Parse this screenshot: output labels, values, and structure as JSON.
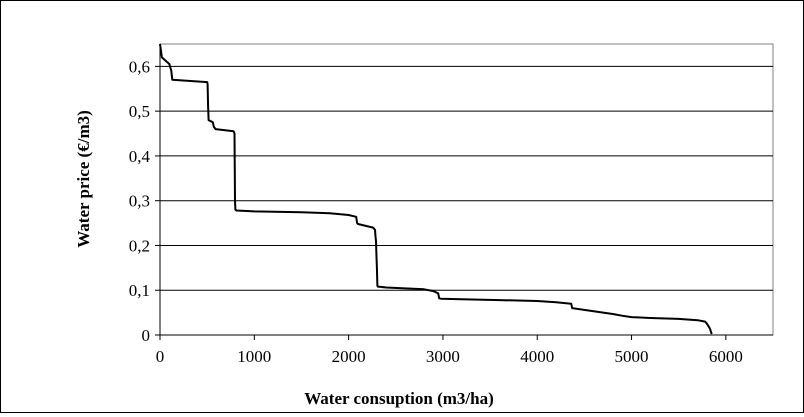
{
  "chart_data": {
    "type": "line",
    "title": "",
    "xlabel": "Water consuption  (m3/ha)",
    "ylabel": "Water price (€/m3)",
    "xlim": [
      0,
      6500
    ],
    "ylim": [
      0,
      0.65
    ],
    "x_ticks": [
      0,
      1000,
      2000,
      3000,
      4000,
      5000,
      6000
    ],
    "x_tick_labels": [
      "0",
      "1000",
      "2000",
      "3000",
      "4000",
      "5000",
      "6000"
    ],
    "y_ticks": [
      0,
      0.1,
      0.2,
      0.3,
      0.4,
      0.5,
      0.6
    ],
    "y_tick_labels": [
      "0",
      "0,1",
      "0,2",
      "0,3",
      "0,4",
      "0,5",
      "0,6"
    ],
    "grid": "horizontal",
    "legend": "none",
    "series": [
      {
        "color": "#000000",
        "x": [
          0,
          20,
          100,
          120,
          130,
          500,
          505,
          510,
          515,
          560,
          570,
          590,
          780,
          790,
          795,
          800,
          810,
          1000,
          1500,
          1800,
          2000,
          2080,
          2090,
          2100,
          2260,
          2280,
          2285,
          2290,
          2295,
          2300,
          2305,
          2310,
          2400,
          2600,
          2800,
          2900,
          2950,
          2960,
          2980,
          3200,
          3600,
          4000,
          4200,
          4360,
          4365,
          4370,
          4700,
          4800,
          4900,
          5000,
          5200,
          5500,
          5700,
          5780,
          5800,
          5830,
          5850
        ],
        "y": [
          0.65,
          0.62,
          0.605,
          0.59,
          0.57,
          0.565,
          0.56,
          0.51,
          0.48,
          0.475,
          0.465,
          0.46,
          0.455,
          0.45,
          0.3,
          0.28,
          0.278,
          0.276,
          0.274,
          0.272,
          0.268,
          0.264,
          0.25,
          0.248,
          0.24,
          0.235,
          0.22,
          0.21,
          0.18,
          0.15,
          0.11,
          0.108,
          0.106,
          0.104,
          0.102,
          0.098,
          0.093,
          0.082,
          0.081,
          0.08,
          0.078,
          0.076,
          0.073,
          0.07,
          0.065,
          0.06,
          0.05,
          0.047,
          0.043,
          0.04,
          0.038,
          0.036,
          0.033,
          0.03,
          0.025,
          0.015,
          0.002
        ]
      }
    ]
  }
}
